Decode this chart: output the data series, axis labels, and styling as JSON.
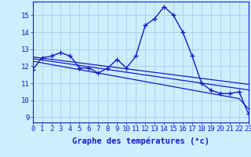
{
  "x": [
    0,
    1,
    2,
    3,
    4,
    5,
    6,
    7,
    8,
    9,
    10,
    11,
    12,
    13,
    14,
    15,
    16,
    17,
    18,
    19,
    20,
    21,
    22,
    23
  ],
  "y_main": [
    11.8,
    12.5,
    12.6,
    12.8,
    12.6,
    11.9,
    11.9,
    11.6,
    11.9,
    12.4,
    11.9,
    12.6,
    14.4,
    14.8,
    15.5,
    15.0,
    14.0,
    12.6,
    11.0,
    10.6,
    10.4,
    10.4,
    10.5,
    9.2
  ],
  "y_trend1": [
    12.55,
    12.48,
    12.41,
    12.34,
    12.27,
    12.2,
    12.13,
    12.06,
    11.99,
    11.92,
    11.85,
    11.78,
    11.71,
    11.64,
    11.57,
    11.5,
    11.43,
    11.36,
    11.29,
    11.22,
    11.15,
    11.08,
    11.01,
    10.94
  ],
  "y_trend2": [
    12.45,
    12.37,
    12.29,
    12.21,
    12.13,
    12.05,
    11.97,
    11.89,
    11.81,
    11.73,
    11.65,
    11.57,
    11.49,
    11.41,
    11.33,
    11.25,
    11.17,
    11.09,
    11.01,
    10.93,
    10.85,
    10.77,
    10.69,
    10.61
  ],
  "y_trend3": [
    12.3,
    12.2,
    12.1,
    12.0,
    11.9,
    11.8,
    11.7,
    11.6,
    11.5,
    11.4,
    11.3,
    11.2,
    11.1,
    11.0,
    10.9,
    10.8,
    10.7,
    10.6,
    10.5,
    10.4,
    10.3,
    10.2,
    10.1,
    9.5
  ],
  "xlabel": "Graphe des températures (°c)",
  "xtick_labels": [
    "0",
    "1",
    "2",
    "3",
    "4",
    "5",
    "6",
    "7",
    "8",
    "9",
    "10",
    "11",
    "12",
    "13",
    "14",
    "15",
    "16",
    "17",
    "18",
    "19",
    "20",
    "21",
    "22",
    "23"
  ],
  "yticks": [
    9,
    10,
    11,
    12,
    13,
    14,
    15
  ],
  "ylim": [
    8.7,
    15.8
  ],
  "xlim": [
    0,
    23
  ],
  "line_color": "#1a1acc",
  "bg_color": "#cceeff",
  "grid_color": "#99cce0",
  "xlabel_fontsize": 7.5,
  "tick_fontsize": 6.5,
  "marker": "+",
  "markersize": 4.0
}
